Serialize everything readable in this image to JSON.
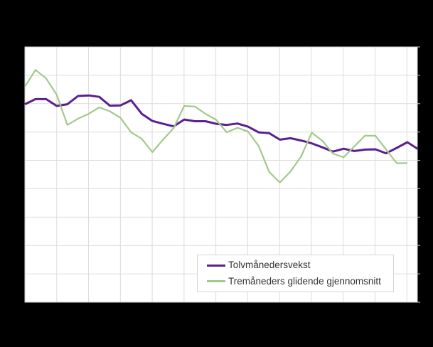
{
  "window": {
    "background_color": "#000000",
    "note_visible_text": "Only the legend labels are visible; chart title and axis tick labels are not rendered in the pixels."
  },
  "chart": {
    "plot_background_color": "#ffffff",
    "gridline_color": "#dcdcdc",
    "plot_border_color": "#d0d0d0",
    "tick_color": "#c4c4c4",
    "legend_text_color": "#333333"
  },
  "legend": {
    "items": [
      {
        "label": "Tolvmånedersvekst",
        "color": "#5b1f8f"
      },
      {
        "label": "Tremåneders glidende gjennomsnitt",
        "color": "#a3c98a"
      }
    ]
  },
  "chart_data": {
    "type": "line",
    "title": "",
    "xlabel": "",
    "ylabel": "",
    "x_axis": {
      "tick_labels_visible": false,
      "vertical_gridlines": 13,
      "unit": "month index (labels not visible in image)"
    },
    "y_axis": {
      "tick_labels_visible": false,
      "horizontal_gridlines": 10,
      "ticks_side": "right",
      "unit": "gridline intervals above bottom gridline (labels not visible in image)"
    },
    "grid": true,
    "legend_position": "inside-bottom-right",
    "series": [
      {
        "name": "Tolvmånedersvekst",
        "color": "#5b1f8f",
        "stroke_width": 3,
        "values": [
          6.98,
          7.16,
          7.16,
          6.92,
          6.98,
          7.27,
          7.29,
          7.24,
          6.93,
          6.94,
          7.12,
          6.64,
          6.39,
          6.29,
          6.2,
          6.44,
          6.38,
          6.38,
          6.29,
          6.25,
          6.3,
          6.19,
          5.99,
          5.96,
          5.73,
          5.78,
          5.7,
          5.6,
          5.46,
          5.31,
          5.41,
          5.33,
          5.38,
          5.39,
          5.25,
          5.44,
          5.64,
          5.4
        ]
      },
      {
        "name": "Tremåneders glidende gjennomsnitt",
        "color": "#a3c98a",
        "stroke_width": 2.2,
        "values": [
          7.6,
          8.19,
          7.89,
          7.31,
          6.25,
          6.47,
          6.64,
          6.87,
          6.73,
          6.5,
          5.99,
          5.76,
          5.29,
          5.73,
          6.14,
          6.92,
          6.9,
          6.64,
          6.43,
          5.99,
          6.15,
          6.02,
          5.51,
          4.59,
          4.22,
          4.61,
          5.14,
          5.98,
          5.69,
          5.24,
          5.11,
          5.49,
          5.87,
          5.87,
          5.38,
          4.9,
          4.9
        ]
      }
    ]
  }
}
